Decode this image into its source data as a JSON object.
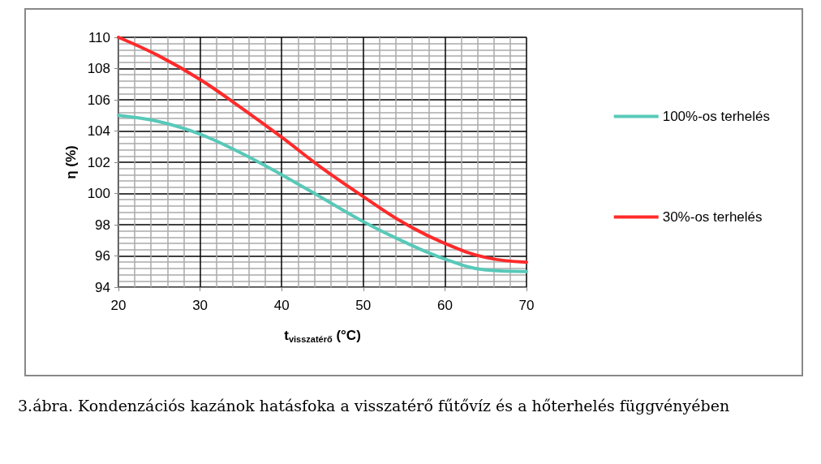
{
  "chart_data": {
    "type": "line",
    "xlabel": "t$_{visszatérő}$ (°C)",
    "ylabel": "η (%)",
    "x": [
      20,
      25,
      30,
      35,
      40,
      45,
      50,
      55,
      60,
      65,
      70
    ],
    "xlim": [
      20,
      70
    ],
    "xticks": [
      20,
      30,
      40,
      50,
      60,
      70
    ],
    "ylim": [
      94,
      110
    ],
    "yticks": [
      94,
      96,
      98,
      100,
      102,
      104,
      106,
      108,
      110
    ],
    "grid": true,
    "legend": "right",
    "marker": "none",
    "line_style": "solid",
    "series": [
      {
        "name": "100%-os terhelés",
        "color": "#58c9b9",
        "values": [
          105,
          104.6,
          103.8,
          102.6,
          101.2,
          99.7,
          98.2,
          96.9,
          95.8,
          95.1,
          95.0
        ]
      },
      {
        "name": "30%-os terhelés",
        "color": "#ff2a2a",
        "values": [
          110,
          108.8,
          107.3,
          105.5,
          103.6,
          101.6,
          99.8,
          98.1,
          96.8,
          95.9,
          95.6
        ]
      }
    ],
    "annotations": [
      "3.ábra. Kondenzációs kazánok hatásfoka a visszatérő fűtővíz és a hőterhelés függvényében"
    ]
  }
}
